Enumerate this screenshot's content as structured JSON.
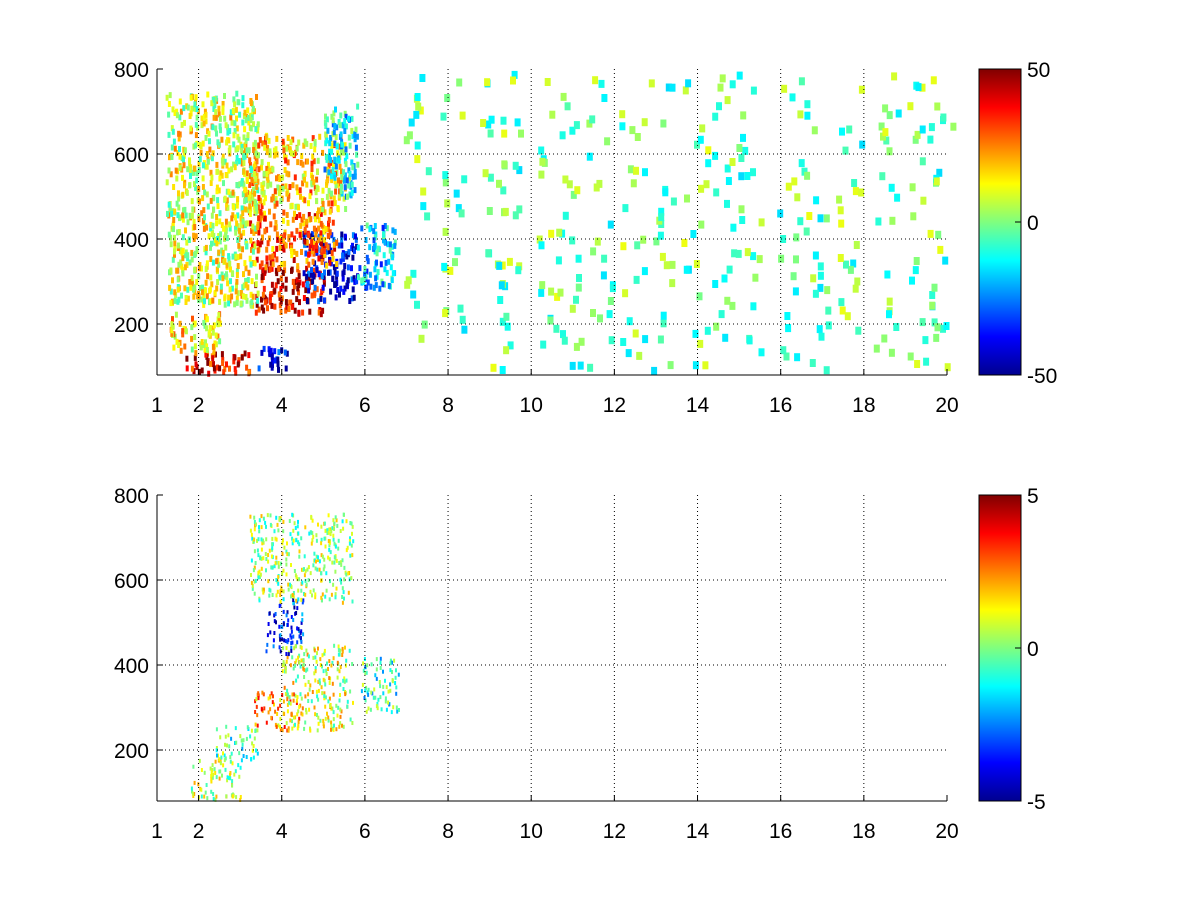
{
  "chart_data": [
    {
      "type": "heatmap",
      "title": "",
      "xlabel": "",
      "ylabel": "",
      "xlim": [
        1,
        20
      ],
      "ylim": [
        80,
        800
      ],
      "grid": true,
      "x_ticks": [
        1,
        2,
        4,
        6,
        8,
        10,
        12,
        14,
        16,
        18,
        20
      ],
      "y_ticks": [
        200,
        400,
        600,
        800
      ],
      "colorbar": {
        "min": -50,
        "max": 50,
        "ticks": [
          -50,
          0,
          50
        ],
        "colormap": "jet",
        "placement": "right"
      },
      "blobs": [
        {
          "x": [
            1.6,
            3.2
          ],
          "y": [
            90,
            140
          ],
          "value": 40
        },
        {
          "x": [
            1.3,
            2.5
          ],
          "y": [
            140,
            230
          ],
          "value": 15
        },
        {
          "x": [
            3.4,
            4.1
          ],
          "y": [
            95,
            150
          ],
          "value": -40
        },
        {
          "x": [
            3.3,
            5.0
          ],
          "y": [
            230,
            340
          ],
          "value": 42
        },
        {
          "x": [
            4.5,
            5.8
          ],
          "y": [
            260,
            420
          ],
          "value": -40
        },
        {
          "x": [
            3.2,
            5.3
          ],
          "y": [
            340,
            470
          ],
          "value": 28
        },
        {
          "x": [
            3.0,
            5.5
          ],
          "y": [
            470,
            650
          ],
          "value": 18
        },
        {
          "x": [
            5.0,
            5.8
          ],
          "y": [
            500,
            720
          ],
          "value": -12
        },
        {
          "x": [
            5.8,
            6.7
          ],
          "y": [
            290,
            440
          ],
          "value": -18
        },
        {
          "x": [
            1.2,
            3.4
          ],
          "y": [
            250,
            750
          ],
          "value": 8
        }
      ]
    },
    {
      "type": "heatmap",
      "title": "",
      "xlabel": "",
      "ylabel": "",
      "xlim": [
        1,
        20
      ],
      "ylim": [
        80,
        800
      ],
      "grid": true,
      "x_ticks": [
        1,
        2,
        4,
        6,
        8,
        10,
        12,
        14,
        16,
        18,
        20
      ],
      "y_ticks": [
        200,
        400,
        600,
        800
      ],
      "colorbar": {
        "min": -5,
        "max": 5,
        "ticks": [
          -5,
          0,
          5
        ],
        "colormap": "jet",
        "placement": "right"
      },
      "blobs": [
        {
          "x": [
            1.8,
            3.0
          ],
          "y": [
            85,
            180
          ],
          "value": 0.5
        },
        {
          "x": [
            2.4,
            3.4
          ],
          "y": [
            180,
            260
          ],
          "value": -0.5
        },
        {
          "x": [
            3.3,
            4.5
          ],
          "y": [
            250,
            340
          ],
          "value": 2.2
        },
        {
          "x": [
            4.0,
            5.7
          ],
          "y": [
            250,
            450
          ],
          "value": 0.8
        },
        {
          "x": [
            3.6,
            4.5
          ],
          "y": [
            430,
            560
          ],
          "value": -3.5
        },
        {
          "x": [
            3.2,
            5.7
          ],
          "y": [
            550,
            760
          ],
          "value": 0.3
        },
        {
          "x": [
            5.9,
            6.8
          ],
          "y": [
            290,
            420
          ],
          "value": -0.8
        }
      ]
    }
  ]
}
